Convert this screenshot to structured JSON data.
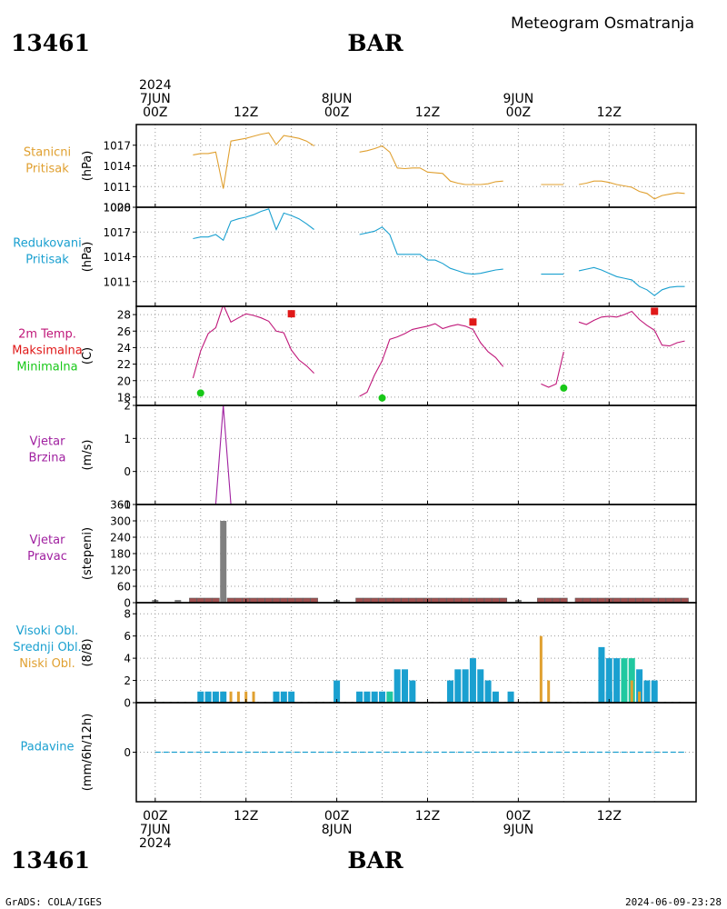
{
  "header": {
    "station_id": "13461",
    "station_name": "BAR",
    "title": "Meteogram Osmatranja",
    "footer_left": "GrADS: COLA/IGES",
    "footer_right": "2024-06-09-23:28"
  },
  "time_axis": {
    "top": [
      {
        "h": 0,
        "lines": [
          "2024",
          "7JUN",
          "00Z"
        ]
      },
      {
        "h": 12,
        "lines": [
          "12Z"
        ]
      },
      {
        "h": 24,
        "lines": [
          "8JUN",
          "00Z"
        ]
      },
      {
        "h": 36,
        "lines": [
          "12Z"
        ]
      },
      {
        "h": 48,
        "lines": [
          "9JUN",
          "00Z"
        ]
      },
      {
        "h": 60,
        "lines": [
          "12Z"
        ]
      }
    ],
    "bottom": [
      {
        "h": 0,
        "lines": [
          "00Z",
          "7JUN",
          "2024"
        ]
      },
      {
        "h": 12,
        "lines": [
          "12Z"
        ]
      },
      {
        "h": 24,
        "lines": [
          "00Z",
          "8JUN"
        ]
      },
      {
        "h": 36,
        "lines": [
          "12Z"
        ]
      },
      {
        "h": 48,
        "lines": [
          "00Z",
          "9JUN"
        ]
      },
      {
        "h": 60,
        "lines": [
          "12Z"
        ]
      }
    ]
  },
  "chart_data": [
    {
      "id": "stanicni",
      "type": "line",
      "labels": [
        {
          "text": "Stanicni",
          "color": "#e0a030"
        },
        {
          "text": "Pritisak",
          "color": "#e0a030"
        }
      ],
      "ylabel": "(hPa)",
      "ylim": [
        1008,
        1020
      ],
      "yticks": [
        1008,
        1011,
        1014,
        1017
      ],
      "series": [
        {
          "color": "#e0a030",
          "x": [
            5,
            6,
            7,
            8,
            9,
            10,
            11,
            12,
            13,
            14,
            15,
            16,
            17,
            18,
            19,
            20,
            21,
            null,
            27,
            28,
            29,
            30,
            31,
            32,
            33,
            34,
            35,
            36,
            37,
            38,
            39,
            40,
            41,
            42,
            43,
            44,
            45,
            46,
            null,
            51,
            52,
            53,
            54,
            55,
            56,
            57,
            58,
            59,
            60,
            61,
            62,
            63,
            64,
            65,
            66,
            67,
            68,
            69,
            70
          ],
          "y": [
            1015.6,
            1015.8,
            1015.8,
            1016.0,
            1010.7,
            1017.6,
            1017.8,
            1018.0,
            1018.3,
            1018.6,
            1018.8,
            1017.1,
            1018.4,
            1018.2,
            1018.0,
            1017.6,
            1016.9,
            null,
            1016.0,
            1016.2,
            1016.5,
            1016.9,
            1016.0,
            1013.7,
            1013.6,
            1013.7,
            1013.7,
            1013.1,
            1013.0,
            1012.9,
            1011.8,
            1011.5,
            1011.3,
            1011.3,
            1011.3,
            1011.4,
            1011.7,
            1011.8,
            null,
            1011.3,
            1011.3,
            1011.3,
            1011.3,
            null,
            1011.3,
            1011.5,
            1011.8,
            1011.8,
            1011.6,
            1011.3,
            1011.1,
            1010.9,
            1010.3,
            1010.0,
            1009.2,
            1009.7,
            1009.9,
            1010.1,
            1010.0
          ]
        }
      ]
    },
    {
      "id": "redukovani",
      "type": "line",
      "labels": [
        {
          "text": "Redukovani",
          "color": "#1aa0d0"
        },
        {
          "text": "Pritisak",
          "color": "#1aa0d0"
        }
      ],
      "ylabel": "(hPa)",
      "ylim": [
        1008,
        1020
      ],
      "yticks": [
        1011,
        1014,
        1017,
        1020
      ],
      "series": [
        {
          "color": "#1aa0d0",
          "x": [
            5,
            6,
            7,
            8,
            9,
            10,
            11,
            12,
            13,
            14,
            15,
            16,
            17,
            18,
            19,
            20,
            21,
            null,
            27,
            28,
            29,
            30,
            31,
            32,
            33,
            34,
            35,
            36,
            37,
            38,
            39,
            40,
            41,
            42,
            43,
            44,
            45,
            46,
            null,
            51,
            52,
            53,
            54,
            55,
            56,
            57,
            58,
            59,
            60,
            61,
            62,
            63,
            64,
            65,
            66,
            67,
            68,
            69,
            70
          ],
          "y": [
            1016.2,
            1016.4,
            1016.4,
            1016.7,
            1016.0,
            1018.3,
            1018.6,
            1018.8,
            1019.1,
            1019.5,
            1019.8,
            1017.3,
            1019.3,
            1019.0,
            1018.6,
            1018.0,
            1017.3,
            null,
            1016.7,
            1016.9,
            1017.1,
            1017.6,
            1016.7,
            1014.3,
            1014.3,
            1014.3,
            1014.3,
            1013.6,
            1013.6,
            1013.2,
            1012.6,
            1012.3,
            1012.0,
            1011.9,
            1012.0,
            1012.2,
            1012.4,
            1012.5,
            null,
            1011.9,
            1011.9,
            1011.9,
            1011.9,
            null,
            1012.3,
            1012.5,
            1012.7,
            1012.4,
            1012.0,
            1011.6,
            1011.4,
            1011.2,
            1010.4,
            1010.0,
            1009.3,
            1010.0,
            1010.3,
            1010.4,
            1010.4
          ]
        }
      ]
    },
    {
      "id": "temperatura",
      "type": "line",
      "labels": [
        {
          "text": "2m Temp.",
          "color": "#c0187a"
        },
        {
          "text": "Maksimalna",
          "color": "#e01818"
        },
        {
          "text": "Minimalna",
          "color": "#18c818"
        }
      ],
      "ylabel": "(C)",
      "ylim": [
        17,
        29
      ],
      "yticks": [
        18,
        20,
        22,
        24,
        26,
        28
      ],
      "series": [
        {
          "name": "2m Temp.",
          "color": "#c0187a",
          "x": [
            5,
            6,
            7,
            8,
            9,
            10,
            11,
            12,
            13,
            14,
            15,
            16,
            17,
            18,
            19,
            20,
            21,
            null,
            27,
            28,
            29,
            30,
            31,
            32,
            33,
            34,
            35,
            36,
            37,
            38,
            39,
            40,
            41,
            42,
            43,
            44,
            45,
            46,
            null,
            51,
            52,
            53,
            54,
            null,
            56,
            57,
            58,
            59,
            60,
            61,
            62,
            63,
            64,
            65,
            66,
            67,
            68,
            69,
            70
          ],
          "y": [
            20.3,
            23.6,
            25.7,
            26.4,
            29.2,
            27.1,
            27.6,
            28.1,
            27.9,
            27.6,
            27.2,
            26.0,
            25.8,
            23.7,
            22.5,
            21.8,
            20.9,
            null,
            18.1,
            18.6,
            20.7,
            22.4,
            25.0,
            25.3,
            25.7,
            26.2,
            26.4,
            26.6,
            26.9,
            26.3,
            26.6,
            26.8,
            26.6,
            26.2,
            24.6,
            23.5,
            22.8,
            21.7,
            null,
            19.6,
            19.2,
            19.6,
            23.5,
            null,
            27.1,
            26.8,
            27.3,
            27.7,
            27.8,
            27.7,
            28.0,
            28.4,
            27.4,
            26.7,
            26.1,
            24.3,
            24.2,
            24.6,
            24.8
          ]
        }
      ],
      "markers": [
        {
          "name": "Maksimalna",
          "shape": "square",
          "color": "#e01818",
          "x": [
            18,
            42,
            66
          ],
          "y": [
            28.1,
            27.1,
            28.4
          ]
        },
        {
          "name": "Minimalna",
          "shape": "circle",
          "color": "#18c818",
          "x": [
            6,
            30,
            54
          ],
          "y": [
            18.5,
            17.9,
            19.1
          ]
        }
      ]
    },
    {
      "id": "brzina",
      "type": "line",
      "labels": [
        {
          "text": "Vjetar",
          "color": "#a020a0"
        },
        {
          "text": "Brzina",
          "color": "#a020a0"
        }
      ],
      "ylabel": "(m/s)",
      "ylim": [
        -1,
        2
      ],
      "yticks": [
        -1,
        0,
        1,
        2
      ],
      "series": [
        {
          "color": "#a020a0",
          "x": [
            5,
            6,
            7,
            8,
            9,
            10,
            11,
            12,
            13,
            14,
            15,
            16,
            17,
            18,
            19,
            20,
            21,
            null,
            27,
            28,
            29,
            30,
            31,
            32,
            33,
            34,
            35,
            36,
            37,
            38,
            39,
            40,
            41,
            42,
            43,
            44,
            45,
            46,
            null,
            51,
            52,
            53,
            54,
            null,
            56,
            57,
            58,
            59,
            60,
            61,
            62,
            63,
            64,
            65,
            66,
            67,
            68,
            69,
            70
          ],
          "y": [
            -1,
            -1,
            -1,
            -1,
            2,
            -1,
            -1,
            -1,
            -1,
            -1,
            -1,
            -1,
            -1,
            -1,
            -1,
            -1,
            -1,
            null,
            -1,
            -1,
            -1,
            -1,
            -1,
            -1,
            -1,
            -1,
            -1,
            -1,
            -1,
            -1,
            -1,
            -1,
            -1,
            -1,
            -1,
            -1,
            -1,
            -1,
            null,
            -1,
            -1,
            -1,
            -1,
            null,
            -1,
            -1,
            -1,
            -1,
            -1,
            -1,
            -1,
            -1,
            -1,
            -1,
            -1,
            -1,
            -1,
            -1,
            -1
          ]
        }
      ]
    },
    {
      "id": "pravac",
      "type": "bar",
      "labels": [
        {
          "text": "Vjetar",
          "color": "#a020a0"
        },
        {
          "text": "Pravac",
          "color": "#a020a0"
        }
      ],
      "ylabel": "(stepeni)",
      "ylim": [
        0,
        360
      ],
      "yticks": [
        0,
        60,
        120,
        180,
        240,
        300,
        360
      ],
      "series": [
        {
          "name": "dir",
          "color": "#808080",
          "x": [
            0,
            3,
            9,
            24,
            48
          ],
          "values": [
            10,
            10,
            300,
            10,
            10
          ]
        },
        {
          "name": "calm",
          "color": "#a05050",
          "x": [
            5,
            6,
            7,
            8,
            10,
            11,
            12,
            13,
            14,
            15,
            16,
            17,
            18,
            19,
            20,
            21,
            27,
            28,
            29,
            30,
            31,
            32,
            33,
            34,
            35,
            36,
            37,
            38,
            39,
            40,
            41,
            42,
            43,
            44,
            45,
            46,
            51,
            52,
            53,
            54,
            56,
            57,
            58,
            59,
            60,
            61,
            62,
            63,
            64,
            65,
            66,
            67,
            68,
            69,
            70
          ],
          "values": "flat"
        }
      ]
    },
    {
      "id": "oblaci",
      "type": "bar",
      "labels": [
        {
          "text": "Visoki Obl.",
          "color": "#1aa0d0"
        },
        {
          "text": "Srednji Obl.",
          "color": "#1aa0d0"
        },
        {
          "text": "Niski Obl.",
          "color": "#e0a030"
        }
      ],
      "ylabel": "(8/8)",
      "ylim": [
        0,
        9
      ],
      "yticks": [
        0,
        2,
        4,
        6,
        8
      ],
      "series": [
        {
          "name": "Visoki Obl.",
          "color": "#1aa0d0",
          "x": [
            6,
            7,
            8,
            16,
            17,
            18,
            24,
            27,
            28,
            29,
            32,
            33,
            34,
            39,
            40,
            41,
            42,
            43,
            44,
            45,
            47,
            60,
            61,
            64,
            65,
            66
          ],
          "values": [
            1,
            1,
            1,
            1,
            1,
            1,
            2,
            1,
            1,
            1,
            3,
            3,
            2,
            2,
            3,
            3,
            4,
            3,
            2,
            1,
            1,
            1,
            4,
            3,
            2,
            2
          ]
        },
        {
          "name": "Srednji Obl.",
          "color": "#20c8a0",
          "x": [
            31,
            62,
            63
          ],
          "values": [
            1,
            4,
            4
          ]
        },
        {
          "name": "Niski Obl.",
          "color": "#e0a030",
          "x": [
            9,
            10,
            11,
            12,
            13,
            51,
            52,
            63,
            64
          ],
          "values": [
            1,
            1,
            1,
            1,
            1,
            6,
            2,
            2,
            1
          ]
        }
      ],
      "overlay": [
        {
          "name": "Visoki Obl.",
          "color": "#1aa0d0",
          "x": [
            9,
            30,
            59,
            60
          ],
          "values": [
            1,
            1,
            5,
            4
          ]
        }
      ]
    },
    {
      "id": "padavine",
      "type": "line",
      "labels": [
        {
          "text": "Padavine",
          "color": "#1aa0d0"
        }
      ],
      "ylabel": "(mm/6h/12h)",
      "ylim": [
        -1,
        1
      ],
      "yticks": [
        0
      ],
      "series": [
        {
          "color": "#1aa0d0",
          "x": [
            0,
            70
          ],
          "y": [
            0,
            0
          ]
        }
      ]
    }
  ]
}
